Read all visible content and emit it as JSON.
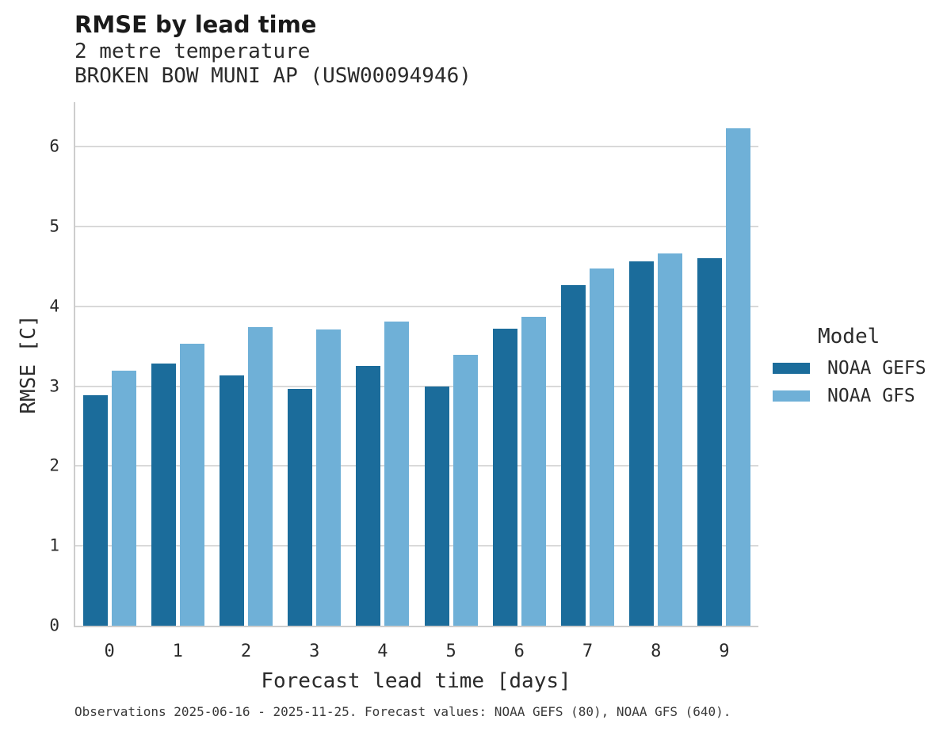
{
  "chart_data": {
    "type": "bar",
    "title": "RMSE by lead time",
    "subtitle": "2 metre temperature",
    "station": "BROKEN BOW MUNI AP (USW00094946)",
    "xlabel": "Forecast lead time [days]",
    "ylabel": "RMSE [C]",
    "categories": [
      "0",
      "1",
      "2",
      "3",
      "4",
      "5",
      "6",
      "7",
      "8",
      "9"
    ],
    "series": [
      {
        "name": "NOAA GEFS",
        "color": "#1b6c9b",
        "values": [
          2.89,
          3.29,
          3.14,
          2.97,
          3.26,
          3.0,
          3.72,
          4.27,
          4.57,
          4.61
        ]
      },
      {
        "name": "NOAA GFS",
        "color": "#6fb0d7",
        "values": [
          3.2,
          3.53,
          3.74,
          3.71,
          3.81,
          3.39,
          3.87,
          4.48,
          4.66,
          6.23
        ]
      }
    ],
    "ylim": [
      0,
      6.56
    ],
    "yticks": [
      0,
      1,
      2,
      3,
      4,
      5,
      6
    ],
    "grid": true,
    "legend_title": "Model",
    "legend_position": "right",
    "caption": "Observations 2025-06-16 - 2025-11-25. Forecast values: NOAA GEFS (80), NOAA GFS (640)."
  },
  "colors": {
    "background": "#ffffff",
    "gridline": "#d9d9d9",
    "spine": "#cdcdcd",
    "text": "#262626"
  }
}
